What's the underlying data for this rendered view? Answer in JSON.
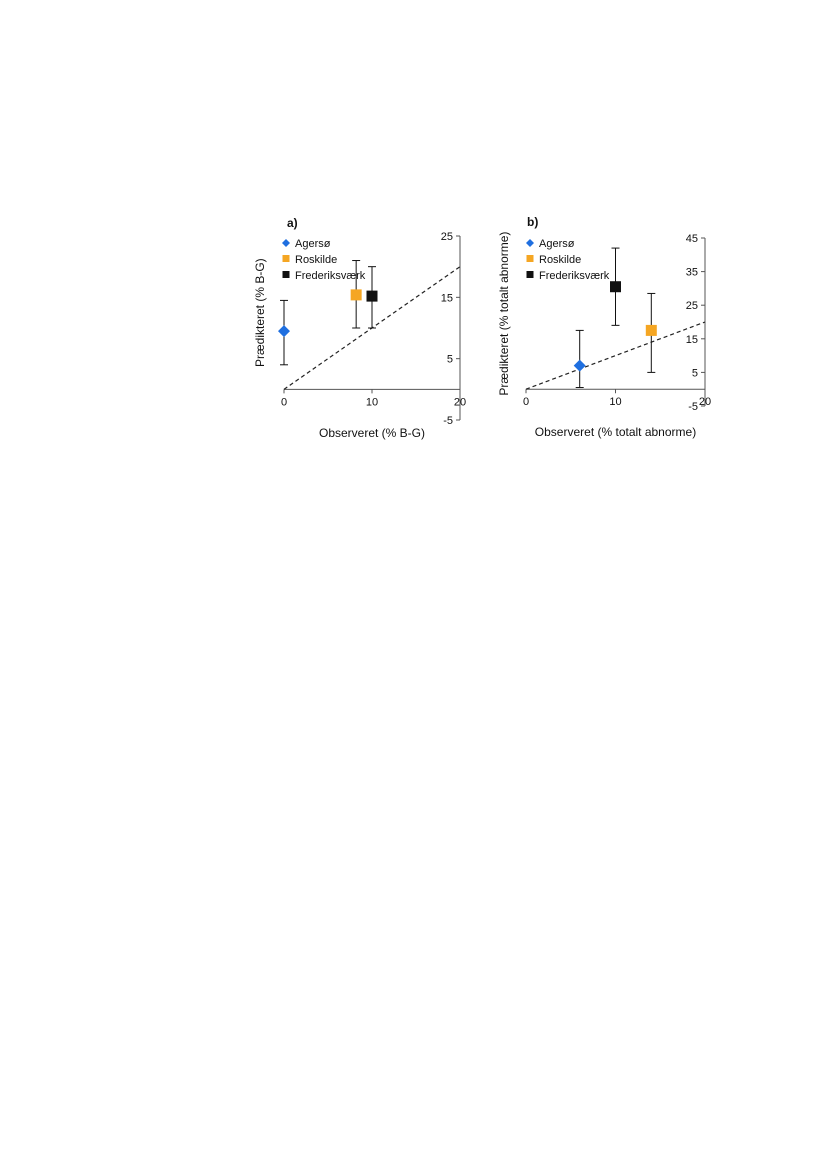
{
  "chart_data": [
    {
      "type": "scatter",
      "panel_label": "a)",
      "xlabel": "Observeret (% B-G)",
      "ylabel": "Prædikteret (% B-G)",
      "xlim": [
        0,
        20
      ],
      "ylim": [
        -5,
        25
      ],
      "xticks": [
        0,
        10,
        20
      ],
      "yticks": [
        -5,
        5,
        15,
        25
      ],
      "y_axis_side": "right",
      "grid": false,
      "legend_position": "top-left",
      "reference_line": "1:1 dashed",
      "series": [
        {
          "name": "Agersø",
          "marker": "diamond",
          "color": "#1f6fe0",
          "x": 0,
          "y": 9.5,
          "err_low": 4,
          "err_high": 14.5
        },
        {
          "name": "Roskilde",
          "marker": "square",
          "color": "#f5a623",
          "x": 8.2,
          "y": 15.4,
          "err_low": 10,
          "err_high": 21
        },
        {
          "name": "Frederiksværk",
          "marker": "square",
          "color": "#111111",
          "x": 10,
          "y": 15.2,
          "err_low": 10,
          "err_high": 20
        }
      ]
    },
    {
      "type": "scatter",
      "panel_label": "b)",
      "xlabel": "Observeret (% totalt abnorme)",
      "ylabel": "Prædikteret (% totalt abnorme)",
      "xlim": [
        0,
        20
      ],
      "ylim": [
        -5,
        45
      ],
      "xticks": [
        0,
        10,
        20
      ],
      "yticks": [
        -5,
        5,
        15,
        25,
        35,
        45
      ],
      "y_axis_side": "right",
      "grid": false,
      "legend_position": "top-left",
      "reference_line": "1:1 dashed",
      "series": [
        {
          "name": "Agersø",
          "marker": "diamond",
          "color": "#1f6fe0",
          "x": 6,
          "y": 7,
          "err_low": 0.5,
          "err_high": 17.5
        },
        {
          "name": "Roskilde",
          "marker": "square",
          "color": "#f5a623",
          "x": 14,
          "y": 17.5,
          "err_low": 5,
          "err_high": 28.5
        },
        {
          "name": "Frederiksværk",
          "marker": "square",
          "color": "#111111",
          "x": 10,
          "y": 30.5,
          "err_low": 19,
          "err_high": 42
        }
      ]
    }
  ]
}
